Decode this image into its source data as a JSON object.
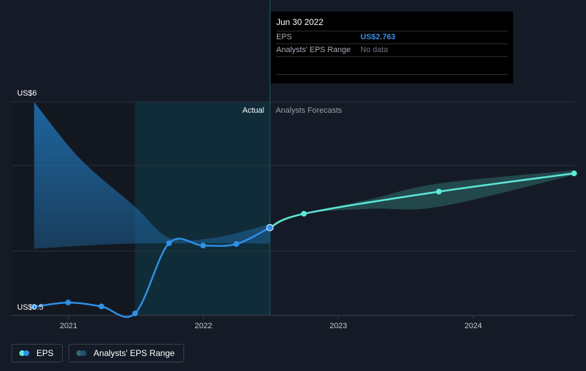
{
  "chart_data": {
    "type": "line",
    "x_ticks": [
      "2021",
      "2022",
      "2023",
      "2024"
    ],
    "y_axis": {
      "top_label": "US$6",
      "bottom_label": "US$0.5",
      "range": [
        0.5,
        6
      ]
    },
    "region_labels": {
      "actual": "Actual",
      "forecast": "Analysts Forecasts"
    },
    "series": [
      {
        "name": "EPS",
        "role": "actual",
        "points": [
          [
            "2020-09-30",
            0.72
          ],
          [
            "2020-12-31",
            0.83
          ],
          [
            "2021-03-31",
            0.73
          ],
          [
            "2021-06-30",
            0.55
          ],
          [
            "2021-09-30",
            2.36
          ],
          [
            "2021-12-31",
            2.3
          ],
          [
            "2022-03-31",
            2.34
          ],
          [
            "2022-06-30",
            2.763
          ]
        ]
      },
      {
        "name": "EPS",
        "role": "forecast",
        "points": [
          [
            "2022-06-30",
            2.763
          ],
          [
            "2022-09-30",
            3.12
          ],
          [
            "2023-09-30",
            3.69
          ],
          [
            "2024-09-30",
            4.16
          ]
        ]
      },
      {
        "name": "Analysts' EPS Range",
        "role": "historical-range",
        "upper": [
          [
            "2020-09-30",
            6.0
          ],
          [
            "2021-01-31",
            4.55
          ],
          [
            "2021-06-30",
            3.3
          ],
          [
            "2021-09-30",
            2.5
          ],
          [
            "2022-01-31",
            2.5
          ],
          [
            "2022-06-30",
            2.85
          ]
        ],
        "lower": [
          [
            "2020-09-30",
            2.22
          ],
          [
            "2021-06-30",
            2.35
          ],
          [
            "2022-06-30",
            2.35
          ]
        ]
      },
      {
        "name": "Analysts' EPS Range",
        "role": "forecast-range",
        "upper": [
          [
            "2022-06-30",
            2.763
          ],
          [
            "2022-09-30",
            3.12
          ],
          [
            "2023-03-31",
            3.5
          ],
          [
            "2023-09-30",
            3.9
          ],
          [
            "2024-09-30",
            4.24
          ]
        ],
        "lower": [
          [
            "2022-06-30",
            2.763
          ],
          [
            "2022-09-30",
            3.12
          ],
          [
            "2023-03-31",
            3.25
          ],
          [
            "2023-09-30",
            3.3
          ],
          [
            "2024-09-30",
            4.12
          ]
        ]
      }
    ],
    "highlight_date": "2022-06-30",
    "colors": {
      "eps_actual": "#2e8fe5",
      "eps_forecast": "#5de8d8",
      "range_actual": "#1f6aa6",
      "range_forecast": "#2f6e69",
      "background": "#151b26"
    }
  },
  "tooltip": {
    "date": "Jun 30 2022",
    "rows": [
      {
        "label": "EPS",
        "value": "US$2.763"
      },
      {
        "label": "Analysts' EPS Range",
        "value": "No data"
      }
    ]
  },
  "legend": {
    "items": [
      {
        "label": "EPS",
        "icon": "eps-dot-icon"
      },
      {
        "label": "Analysts' EPS Range",
        "icon": "range-dot-icon"
      }
    ]
  }
}
